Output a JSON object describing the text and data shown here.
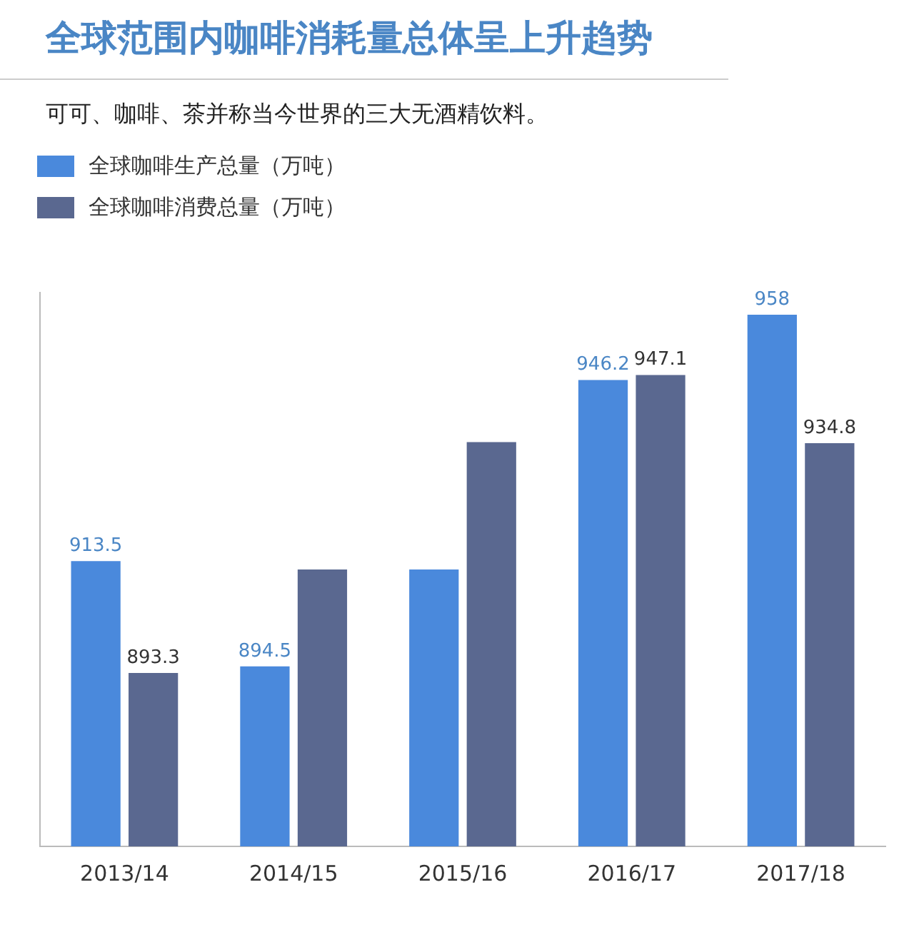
{
  "chart_data": {
    "type": "bar",
    "title": "全球范围内咖啡消耗量总体呈上升趋势",
    "subtitle": "可可、咖啡、茶并称当今世界的三大无酒精饮料。",
    "categories": [
      "2013/14",
      "2014/15",
      "2015/16",
      "2016/17",
      "2017/18"
    ],
    "series": [
      {
        "name": "全球咖啡生产总量（万吨）",
        "color": "#4a89dc",
        "values": [
          913.5,
          894.5,
          912,
          946.2,
          958
        ],
        "value_labels": [
          "913.5",
          "894.5",
          null,
          "946.2",
          "958"
        ]
      },
      {
        "name": "全球咖啡消费总量（万吨）",
        "color": "#5a6890",
        "values": [
          893.3,
          912,
          935,
          947.1,
          934.8
        ],
        "value_labels": [
          "893.3",
          null,
          null,
          "947.1",
          "934.8"
        ]
      }
    ],
    "ylim": [
      862,
      962
    ],
    "tick_labels": "x",
    "grid": false,
    "legend": "top left"
  }
}
